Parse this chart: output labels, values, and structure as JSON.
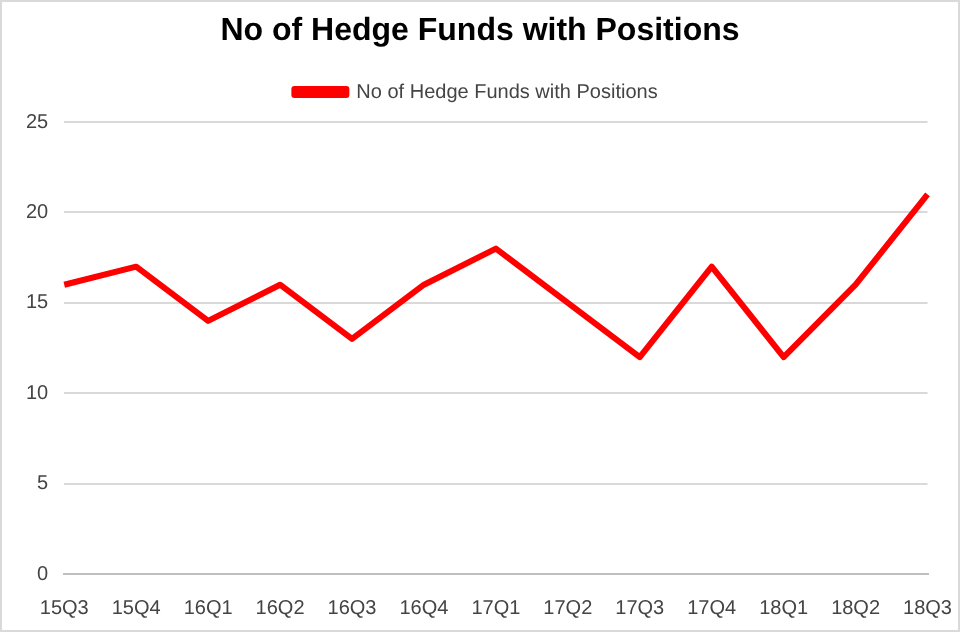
{
  "chart_data": {
    "type": "line",
    "title": "No of Hedge Funds with Positions",
    "categories": [
      "15Q3",
      "15Q4",
      "16Q1",
      "16Q2",
      "16Q3",
      "16Q4",
      "17Q1",
      "17Q2",
      "17Q3",
      "17Q4",
      "18Q1",
      "18Q2",
      "18Q3"
    ],
    "series": [
      {
        "name": "No of Hedge Funds with Positions",
        "color": "#ff0000",
        "values": [
          16,
          17,
          14,
          16,
          13,
          16,
          18,
          15,
          12,
          17,
          12,
          16,
          21
        ]
      }
    ],
    "ylim": [
      0,
      25
    ],
    "yticks": [
      0,
      5,
      10,
      15,
      20,
      25
    ],
    "grid": "y",
    "legend": "top",
    "marker": "none",
    "line_style": "solid"
  }
}
